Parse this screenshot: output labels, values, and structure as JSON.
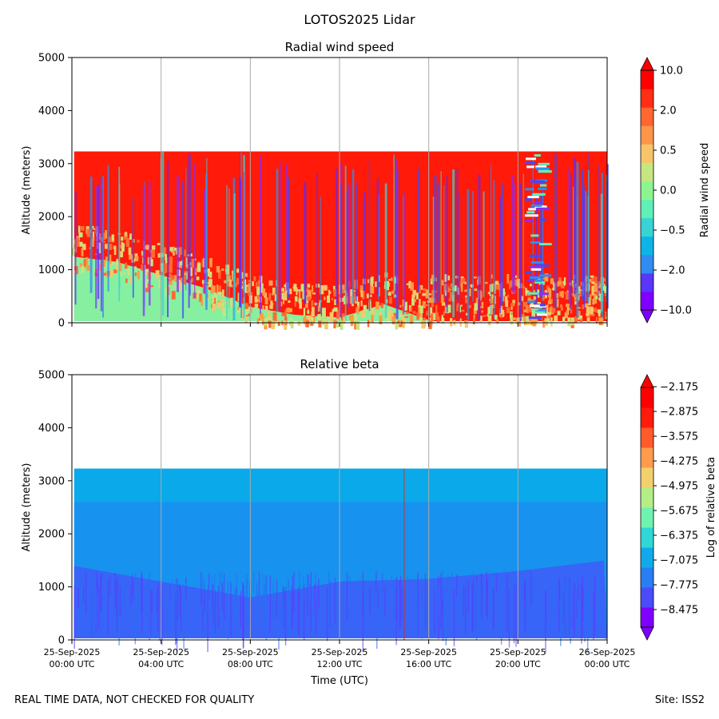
{
  "figure_title": "LOTOS2025 Lidar",
  "footer_left": "REAL TIME DATA, NOT CHECKED FOR QUALITY",
  "footer_right": "Site: ISS2",
  "chart_data": [
    {
      "type": "heatmap",
      "title": "Radial wind speed",
      "ylabel": "Altitude (meters)",
      "ylim": [
        0,
        5000
      ],
      "yticks": [
        0,
        1000,
        2000,
        3000,
        4000,
        5000
      ],
      "xlim_hours": [
        0,
        24
      ],
      "xticks_hours": [
        0,
        4,
        8,
        12,
        16,
        20,
        24
      ],
      "data_top_altitude": 3230,
      "colorbar": {
        "label": "Radial wind speed",
        "tick_labels": [
          "10.0",
          "2.0",
          "0.5",
          "0.0",
          "−0.5",
          "−2.0",
          "−10.0"
        ],
        "levels": 13,
        "colors": [
          "#7f00ff",
          "#5a35fa",
          "#2f8df0",
          "#0db4e8",
          "#38d4d4",
          "#5ff0b8",
          "#8cf590",
          "#c6e680",
          "#f7c46a",
          "#ff9548",
          "#ff6630",
          "#ff2e14",
          "#ff0000"
        ]
      },
      "description_series": [
        {
          "name": "boundary layer top (green region)",
          "x_hours": [
            0,
            2,
            4,
            6,
            8,
            10,
            12,
            14,
            16
          ],
          "y_m": [
            1250,
            1150,
            900,
            650,
            300,
            150,
            100,
            350,
            50
          ]
        }
      ]
    },
    {
      "type": "heatmap",
      "title": "Relative beta",
      "ylabel": "Altitude (meters)",
      "xlabel": "Time (UTC)",
      "ylim": [
        0,
        5000
      ],
      "yticks": [
        0,
        1000,
        2000,
        3000,
        4000,
        5000
      ],
      "xlim_hours": [
        0,
        24
      ],
      "xticks_hours": [
        0,
        4,
        8,
        12,
        16,
        20,
        24
      ],
      "xtick_dates": [
        "25-Sep-2025",
        "25-Sep-2025",
        "25-Sep-2025",
        "25-Sep-2025",
        "25-Sep-2025",
        "25-Sep-2025",
        "26-Sep-2025"
      ],
      "xtick_times": [
        "00:00 UTC",
        "04:00 UTC",
        "08:00 UTC",
        "12:00 UTC",
        "16:00 UTC",
        "20:00 UTC",
        "00:00 UTC"
      ],
      "data_top_altitude": 3230,
      "colorbar": {
        "label": "Log of relative beta",
        "tick_labels": [
          "−2.175",
          "−2.875",
          "−3.575",
          "−4.275",
          "−4.975",
          "−5.675",
          "−6.375",
          "−7.075",
          "−7.775",
          "−8.475"
        ],
        "colors": [
          "#7f00ff",
          "#4a4cfb",
          "#2a7ef3",
          "#10aaea",
          "#2fd8d6",
          "#6ff3b0",
          "#b3ee86",
          "#f2d06c",
          "#ff9b4c",
          "#ff5a2a",
          "#ff1c0c",
          "#ff0000"
        ]
      },
      "description_series": [
        {
          "name": "dark (low beta) region top",
          "x_hours": [
            0,
            4,
            8,
            12,
            16,
            20,
            24
          ],
          "y_m": [
            1400,
            1100,
            800,
            1100,
            1150,
            1300,
            1500
          ]
        }
      ]
    }
  ]
}
